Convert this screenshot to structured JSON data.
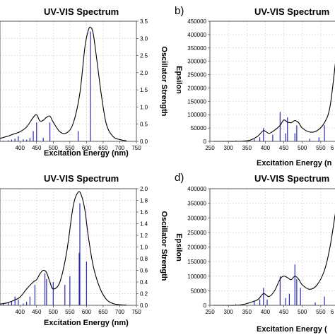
{
  "chart_data": [
    {
      "panel": "",
      "type": "line",
      "title": "UV-VIS Spectrum",
      "xlabel": "Excitation Energy (nm)",
      "ylabel": "",
      "y2label": "Oscillator Strength",
      "xlim": [
        340,
        750
      ],
      "ylim": [
        0,
        100000
      ],
      "y2lim": [
        0,
        3.5
      ],
      "x_ticks": [
        "400",
        "450",
        "500",
        "550",
        "600",
        "650",
        "700",
        "750"
      ],
      "y2_ticks": [
        "0.0",
        "0.5",
        "1.0",
        "1.5",
        "2.0",
        "2.5",
        "3.0",
        "3.5"
      ],
      "grid": true,
      "series": [
        {
          "kind": "spectrum",
          "x": [
            340,
            360,
            380,
            400,
            420,
            440,
            450,
            460,
            470,
            480,
            490,
            500,
            520,
            540,
            560,
            580,
            595,
            605,
            612,
            620,
            630,
            645,
            660,
            680,
            700,
            720
          ],
          "y": [
            2500,
            4000,
            6000,
            8000,
            12000,
            20000,
            22000,
            17000,
            17500,
            20000,
            21000,
            16000,
            8000,
            7000,
            15000,
            40000,
            78000,
            92000,
            95000,
            90000,
            70000,
            38000,
            14000,
            4000,
            1500,
            500
          ]
        },
        {
          "kind": "sticks",
          "x": [
            350,
            365,
            375,
            385,
            395,
            410,
            420,
            430,
            440,
            450,
            470,
            490,
            575,
            612
          ],
          "y": [
            0.02,
            0.03,
            0.05,
            0.08,
            0.15,
            0.06,
            0.05,
            0.1,
            0.3,
            0.55,
            0.1,
            0.55,
            0.3,
            3.2
          ]
        }
      ]
    },
    {
      "panel": "b)",
      "type": "line",
      "title": "UV-VIS Spectrum",
      "xlabel": "Excitation Energy (n",
      "ylabel": "Epsilon",
      "xlim": [
        250,
        600
      ],
      "ylim": [
        0,
        450000
      ],
      "x_ticks": [
        "250",
        "300",
        "350",
        "400",
        "450",
        "500",
        "550",
        "6"
      ],
      "y_ticks": [
        "0",
        "50000",
        "100000",
        "150000",
        "200000",
        "250000",
        "300000",
        "350000",
        "400000",
        "450000"
      ],
      "grid": true,
      "series": [
        {
          "kind": "spectrum",
          "x": [
            260,
            280,
            300,
            320,
            340,
            360,
            380,
            395,
            410,
            425,
            440,
            450,
            460,
            470,
            480,
            490,
            500,
            520,
            540,
            560,
            575,
            590,
            600
          ],
          "y": [
            0,
            0,
            0,
            0,
            1000,
            5000,
            20000,
            40000,
            30000,
            42000,
            60000,
            80000,
            72000,
            70000,
            78000,
            70000,
            50000,
            35000,
            40000,
            70000,
            130000,
            300000,
            450000
          ]
        },
        {
          "kind": "sticks",
          "x": [
            320,
            370,
            385,
            395,
            420,
            440,
            455,
            460,
            480,
            485,
            520,
            545,
            560
          ],
          "y": [
            3000,
            8000,
            15000,
            50000,
            25000,
            110000,
            30000,
            90000,
            30000,
            60000,
            10000,
            15000,
            60000
          ]
        }
      ]
    },
    {
      "panel": "",
      "type": "line",
      "title": "UV-VIS Spectrum",
      "xlabel": "Excitation Energy (nm)",
      "ylabel": "",
      "y2label": "Oscillator Strength",
      "xlim": [
        340,
        750
      ],
      "ylim": [
        0,
        100000
      ],
      "y2lim": [
        0,
        2.0
      ],
      "x_ticks": [
        "400",
        "450",
        "500",
        "550",
        "600",
        "650",
        "700",
        "750"
      ],
      "y2_ticks": [
        "0.0",
        "0.2",
        "0.4",
        "0.6",
        "0.8",
        "1.0",
        "1.2",
        "1.4",
        "1.6",
        "1.8",
        "2.0"
      ],
      "grid": true,
      "series": [
        {
          "kind": "spectrum",
          "x": [
            340,
            360,
            380,
            400,
            420,
            440,
            450,
            460,
            470,
            480,
            490,
            500,
            520,
            540,
            560,
            575,
            585,
            595,
            605,
            620,
            640,
            660,
            680,
            700,
            720
          ],
          "y": [
            1000,
            2000,
            4000,
            7000,
            14000,
            20000,
            22000,
            27000,
            30000,
            28000,
            20000,
            14000,
            20000,
            45000,
            85000,
            97000,
            94000,
            82000,
            60000,
            34000,
            15000,
            5000,
            1500,
            500,
            200
          ]
        },
        {
          "kind": "sticks",
          "x": [
            350,
            365,
            375,
            385,
            395,
            410,
            420,
            430,
            445,
            475,
            480,
            500,
            535,
            550,
            578,
            580,
            600
          ],
          "y": [
            0.04,
            0.05,
            0.06,
            0.15,
            0.1,
            0.03,
            0.06,
            0.15,
            0.35,
            0.55,
            0.45,
            0.4,
            0.35,
            0.5,
            0.9,
            1.75,
            0.75
          ]
        }
      ]
    },
    {
      "panel": "d)",
      "type": "line",
      "title": "UV-VIS Spectrum",
      "xlabel": "Excitation Energy (",
      "ylabel": "Epsilon",
      "xlim": [
        250,
        600
      ],
      "ylim": [
        0,
        400000
      ],
      "x_ticks": [
        "250",
        "300",
        "350",
        "400",
        "450",
        "500",
        "550",
        "6"
      ],
      "y_ticks": [
        "0",
        "50000",
        "100000",
        "150000",
        "200000",
        "250000",
        "300000",
        "350000",
        "400000"
      ],
      "grid": true,
      "series": [
        {
          "kind": "spectrum",
          "x": [
            260,
            280,
            300,
            320,
            340,
            360,
            380,
            395,
            410,
            425,
            440,
            450,
            460,
            470,
            480,
            490,
            500,
            520,
            540,
            560,
            575,
            590,
            600
          ],
          "y": [
            0,
            0,
            0,
            0,
            3000,
            10000,
            20000,
            40000,
            30000,
            50000,
            90000,
            100000,
            95000,
            88000,
            100000,
            90000,
            70000,
            55000,
            70000,
            120000,
            200000,
            320000,
            400000
          ]
        },
        {
          "kind": "sticks",
          "x": [
            320,
            370,
            385,
            395,
            405,
            440,
            455,
            465,
            480,
            485,
            495,
            535,
            560,
            590
          ],
          "y": [
            4000,
            15000,
            20000,
            60000,
            20000,
            100000,
            25000,
            40000,
            140000,
            90000,
            60000,
            10000,
            30000,
            390000
          ]
        }
      ]
    }
  ]
}
